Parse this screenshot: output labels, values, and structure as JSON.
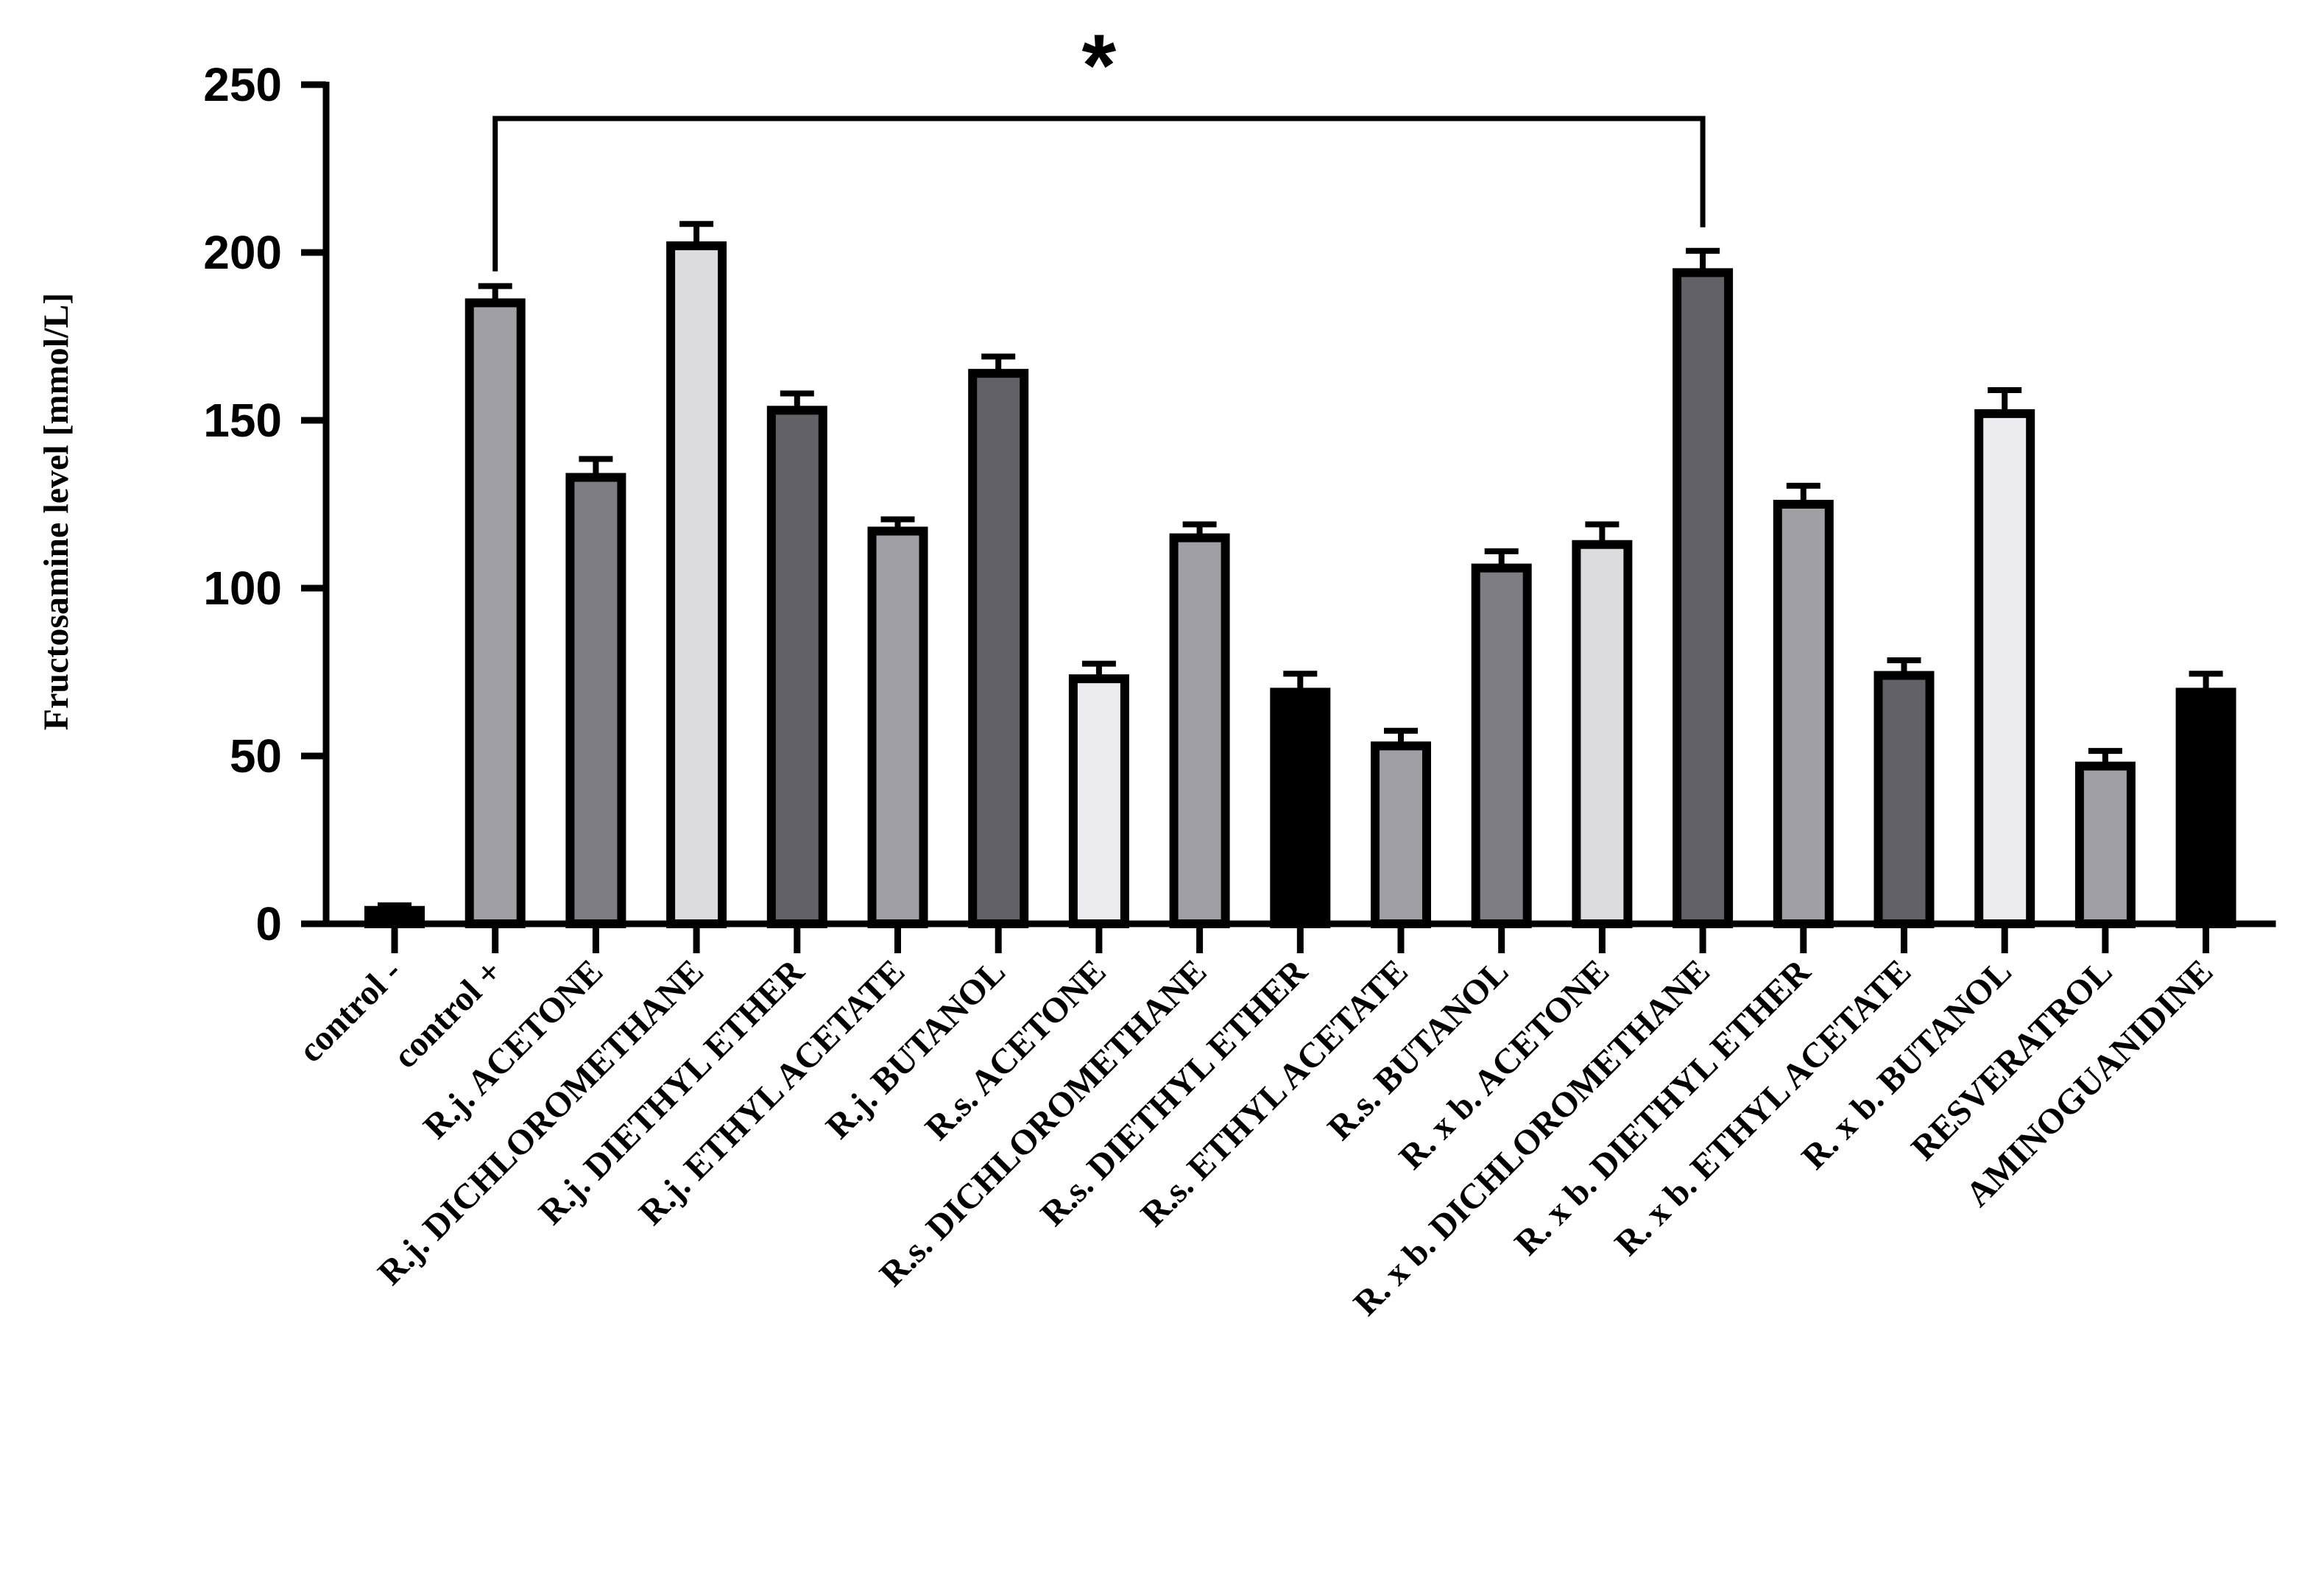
{
  "chart_data": {
    "type": "bar",
    "ylabel": "Fructosamine level [mmol/L]",
    "ylim": [
      0,
      250
    ],
    "yticks": [
      0,
      50,
      100,
      150,
      200,
      250
    ],
    "categories": [
      "control -",
      "control +",
      "R.j. ACETONE",
      "R.j. DICHLOROMETHANE",
      "R.j. DIETHYL ETHER",
      "R.j. ETHYL ACETATE",
      "R.j. BUTANOL",
      "R.s. ACETONE",
      "R.s. DICHLOROMETHANE",
      "R.s. DIETHYL ETHER",
      "R.s. ETHYL ACETATE",
      "R.s. BUTANOL",
      "R. x b. ACETONE",
      "R. x b. DICHLOROMETHANE",
      "R. x b.  DIETHYL ETHER",
      "R. x b.  ETHYL ACETATE",
      "R. x b. BUTANOL",
      "RESVERATROL",
      "AMINOGUANIDINE"
    ],
    "values": [
      4,
      185,
      133,
      202,
      153,
      117,
      164,
      73,
      115,
      69,
      53,
      106,
      113,
      194,
      125,
      74,
      152,
      47,
      69
    ],
    "errors": [
      1.5,
      5,
      5.5,
      6.5,
      5,
      3.5,
      5,
      4.5,
      4,
      5.5,
      4.5,
      5,
      6,
      6.5,
      5.5,
      4.5,
      7,
      4.5,
      5.5
    ],
    "bar_colors": [
      "#000000",
      "#a0a0a4",
      "#7e7e82",
      "#dcdcde",
      "#626266",
      "#a0a0a4",
      "#626266",
      "#ececee",
      "#a0a0a4",
      "#000000",
      "#a0a0a4",
      "#7e7e82",
      "#dcdcde",
      "#626266",
      "#a0a0a4",
      "#626266",
      "#ececee",
      "#a0a0a4",
      "#000000"
    ],
    "significance": {
      "from_index": 1,
      "to_index": 13,
      "label": "*"
    }
  }
}
